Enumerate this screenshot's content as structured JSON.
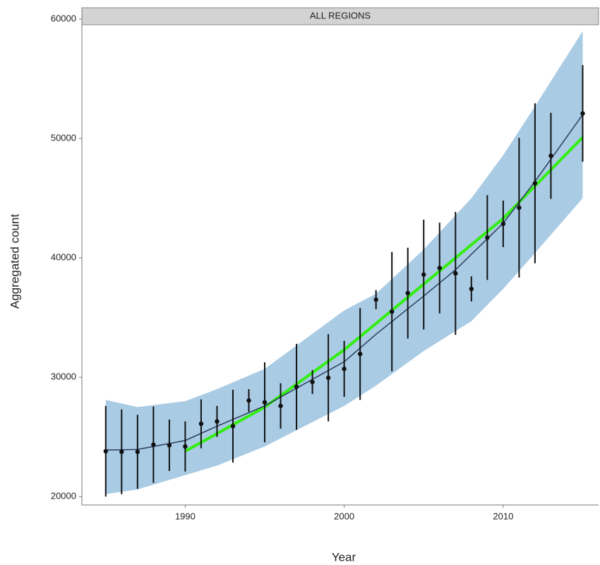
{
  "chart_data": {
    "type": "line",
    "title": "ALL REGIONS",
    "x_label": "Year",
    "y_label": "Aggregated count",
    "xlim": [
      1983.5,
      2016
    ],
    "xticks": [
      1990,
      2000,
      2010
    ],
    "ylim": [
      19300,
      60950
    ],
    "yticks": [
      20000,
      30000,
      40000,
      50000,
      60000
    ],
    "ribbon": {
      "color": "#a9cbe4",
      "x": [
        1985,
        1987,
        1990,
        1992,
        1995,
        2000,
        2002,
        2005,
        2008,
        2010,
        2012,
        2015
      ],
      "upper": [
        28100,
        27500,
        28000,
        29000,
        30700,
        35600,
        37000,
        40700,
        45000,
        48600,
        52700,
        59000
      ],
      "lower": [
        20200,
        20600,
        21800,
        22600,
        24200,
        27600,
        29300,
        32200,
        34700,
        37400,
        40400,
        45000
      ]
    },
    "series": [
      {
        "type": "line",
        "color": "#33ee11",
        "x": [
          1990,
          1995,
          2000,
          2005,
          2010,
          2015
        ],
        "values": [
          23800,
          27500,
          32300,
          37800,
          43300,
          50100
        ]
      },
      {
        "type": "line",
        "color": "#2b3d5c",
        "x": [
          1985,
          1987,
          1990,
          1992,
          1995,
          2000,
          2002,
          2005,
          2007,
          2010,
          2012,
          2015
        ],
        "values": [
          23900,
          23950,
          24700,
          25900,
          27600,
          31300,
          33600,
          36800,
          39000,
          42900,
          46400,
          52000
        ]
      },
      {
        "type": "errorbar",
        "color": "#111111",
        "x": [
          1985,
          1986,
          1987,
          1988,
          1989,
          1990,
          1991,
          1992,
          1993,
          1994,
          1995,
          1996,
          1997,
          1998,
          1999,
          2000,
          2001,
          2002,
          2003,
          2004,
          2005,
          2006,
          2007,
          2008,
          2009,
          2010,
          2011,
          2012,
          2013,
          2015
        ],
        "values": [
          23800,
          23750,
          23750,
          24350,
          24300,
          24200,
          26100,
          26300,
          25900,
          28050,
          27900,
          27600,
          29200,
          29600,
          29950,
          30700,
          31950,
          36500,
          35500,
          37050,
          38600,
          39150,
          38700,
          37400,
          41700,
          42850,
          44200,
          46250,
          48550,
          52100
        ],
        "errors": [
          3800,
          3550,
          3100,
          3200,
          2150,
          2100,
          2050,
          1300,
          3050,
          950,
          3350,
          1900,
          3600,
          1000,
          3650,
          2350,
          3850,
          800,
          5000,
          3800,
          4600,
          3800,
          5150,
          1050,
          3550,
          1950,
          5850,
          6700,
          3600,
          4050
        ]
      }
    ]
  }
}
